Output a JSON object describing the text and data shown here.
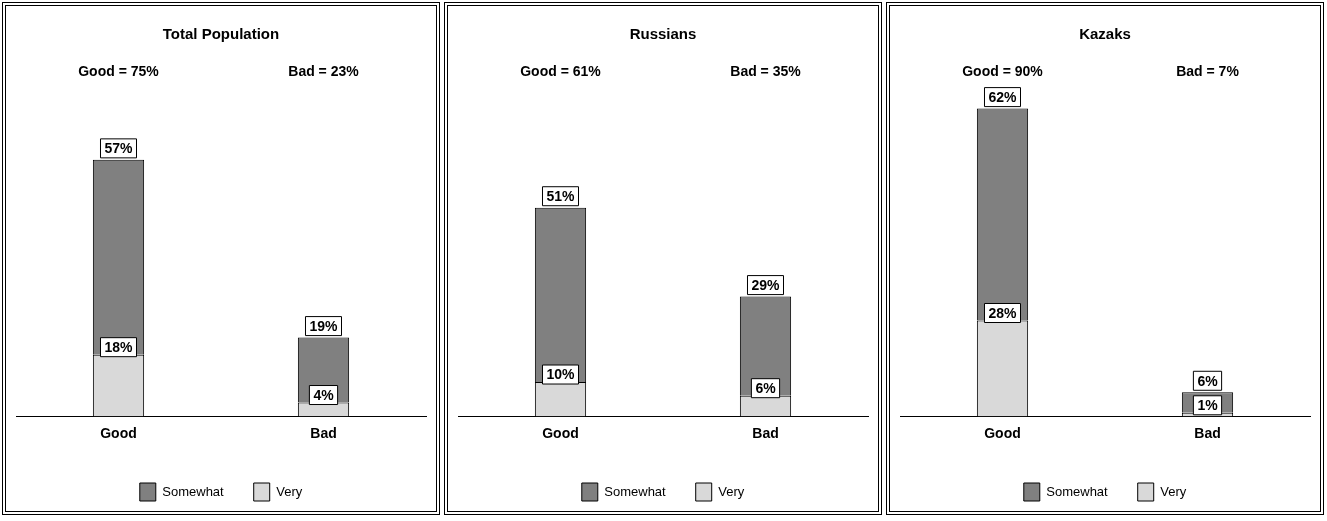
{
  "chart_data": [
    {
      "type": "bar",
      "title": "Total Population",
      "categories": [
        "Good",
        "Bad"
      ],
      "stacked": true,
      "legend": "bottom",
      "annotations": [
        "Good = 75%",
        "Bad = 23%"
      ],
      "series": [
        {
          "name": "Very",
          "color": "#d9d9d9",
          "values": [
            18,
            4
          ],
          "value_labels": [
            "18%",
            "4%"
          ]
        },
        {
          "name": "Somewhat",
          "color": "#808080",
          "values": [
            57,
            19
          ],
          "value_labels": [
            "57%",
            "19%"
          ]
        }
      ]
    },
    {
      "type": "bar",
      "title": "Russians",
      "categories": [
        "Good",
        "Bad"
      ],
      "stacked": true,
      "legend": "bottom",
      "annotations": [
        "Good = 61%",
        "Bad = 35%"
      ],
      "series": [
        {
          "name": "Very",
          "color": "#d9d9d9",
          "values": [
            10,
            6
          ],
          "value_labels": [
            "10%",
            "6%"
          ]
        },
        {
          "name": "Somewhat",
          "color": "#808080",
          "values": [
            51,
            29
          ],
          "value_labels": [
            "51%",
            "29%"
          ]
        }
      ]
    },
    {
      "type": "bar",
      "title": "Kazaks",
      "categories": [
        "Good",
        "Bad"
      ],
      "stacked": true,
      "legend": "bottom",
      "annotations": [
        "Good = 90%",
        "Bad = 7%"
      ],
      "series": [
        {
          "name": "Very",
          "color": "#d9d9d9",
          "values": [
            28,
            1
          ],
          "value_labels": [
            "28%",
            "1%"
          ]
        },
        {
          "name": "Somewhat",
          "color": "#808080",
          "values": [
            62,
            6
          ],
          "value_labels": [
            "62%",
            "6%"
          ]
        }
      ]
    }
  ]
}
